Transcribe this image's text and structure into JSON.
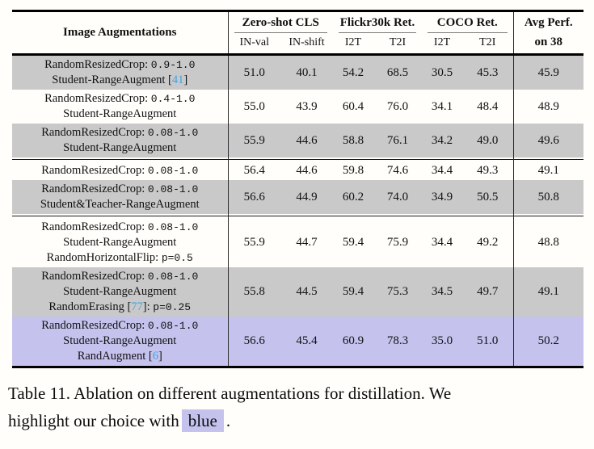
{
  "colors": {
    "row_gray": "#c9c9c9",
    "row_highlight_blue": "#c5c3ee",
    "citation_link": "#42a2e0",
    "rule_black": "#000000"
  },
  "table": {
    "header": {
      "augmentations_label": "Image Augmentations",
      "groups": [
        {
          "label": "Zero-shot CLS",
          "underline": true,
          "divider_left": false,
          "subs": [
            {
              "label": "IN-val",
              "bold": false
            },
            {
              "label": "IN-shift",
              "bold": false
            }
          ]
        },
        {
          "label": "Flickr30k Ret.",
          "underline": true,
          "divider_left": false,
          "subs": [
            {
              "label": "I2T",
              "bold": false
            },
            {
              "label": "T2I",
              "bold": false
            }
          ]
        },
        {
          "label": "COCO Ret.",
          "underline": true,
          "divider_left": false,
          "subs": [
            {
              "label": "I2T",
              "bold": false
            },
            {
              "label": "T2I",
              "bold": false
            }
          ]
        },
        {
          "label": "Avg Perf.",
          "underline": false,
          "divider_left": true,
          "subs": [
            {
              "label": "on 38",
              "bold": true
            }
          ]
        }
      ]
    },
    "rows": [
      {
        "bg": "gray",
        "separator_after": false,
        "lines": [
          [
            {
              "t": "RandomResizedCrop: ",
              "s": "serif"
            },
            {
              "t": "0.9-1.0",
              "s": "mono"
            }
          ],
          [
            {
              "t": "Student-RangeAugment [",
              "s": "serif"
            },
            {
              "t": "41",
              "s": "cite"
            },
            {
              "t": "]",
              "s": "serif"
            }
          ]
        ],
        "values": [
          "51.0",
          "40.1",
          "54.2",
          "68.5",
          "30.5",
          "45.3",
          "45.9"
        ]
      },
      {
        "bg": "white",
        "separator_after": false,
        "lines": [
          [
            {
              "t": "RandomResizedCrop: ",
              "s": "serif"
            },
            {
              "t": "0.4-1.0",
              "s": "mono"
            }
          ],
          [
            {
              "t": "Student-RangeAugment",
              "s": "serif"
            }
          ]
        ],
        "values": [
          "55.0",
          "43.9",
          "60.4",
          "76.0",
          "34.1",
          "48.4",
          "48.9"
        ]
      },
      {
        "bg": "gray",
        "separator_after": true,
        "lines": [
          [
            {
              "t": "RandomResizedCrop: ",
              "s": "serif"
            },
            {
              "t": "0.08-1.0",
              "s": "mono"
            }
          ],
          [
            {
              "t": "Student-RangeAugment",
              "s": "serif"
            }
          ]
        ],
        "values": [
          "55.9",
          "44.6",
          "58.8",
          "76.1",
          "34.2",
          "49.0",
          "49.6"
        ]
      },
      {
        "bg": "white",
        "separator_after": false,
        "lines": [
          [
            {
              "t": "RandomResizedCrop: ",
              "s": "serif"
            },
            {
              "t": "0.08-1.0",
              "s": "mono"
            }
          ]
        ],
        "values": [
          "56.4",
          "44.6",
          "59.8",
          "74.6",
          "34.4",
          "49.3",
          "49.1"
        ]
      },
      {
        "bg": "gray",
        "separator_after": true,
        "lines": [
          [
            {
              "t": "RandomResizedCrop: ",
              "s": "serif"
            },
            {
              "t": "0.08-1.0",
              "s": "mono"
            }
          ],
          [
            {
              "t": "Student&Teacher-RangeAugment",
              "s": "serif"
            }
          ]
        ],
        "values": [
          "56.6",
          "44.9",
          "60.2",
          "74.0",
          "34.9",
          "50.5",
          "50.8"
        ]
      },
      {
        "bg": "white",
        "separator_after": false,
        "lines": [
          [
            {
              "t": "RandomResizedCrop: ",
              "s": "serif"
            },
            {
              "t": "0.08-1.0",
              "s": "mono"
            }
          ],
          [
            {
              "t": "Student-RangeAugment",
              "s": "serif"
            }
          ],
          [
            {
              "t": "RandomHorizontalFlip: ",
              "s": "serif"
            },
            {
              "t": "p=0.5",
              "s": "mono"
            }
          ]
        ],
        "values": [
          "55.9",
          "44.7",
          "59.4",
          "75.9",
          "34.4",
          "49.2",
          "48.8"
        ]
      },
      {
        "bg": "gray",
        "separator_after": false,
        "lines": [
          [
            {
              "t": "RandomResizedCrop: ",
              "s": "serif"
            },
            {
              "t": "0.08-1.0",
              "s": "mono"
            }
          ],
          [
            {
              "t": "Student-RangeAugment",
              "s": "serif"
            }
          ],
          [
            {
              "t": "RandomErasing [",
              "s": "serif"
            },
            {
              "t": "77",
              "s": "cite"
            },
            {
              "t": "]: ",
              "s": "serif"
            },
            {
              "t": "p=0.25",
              "s": "mono"
            }
          ]
        ],
        "values": [
          "55.8",
          "44.5",
          "59.4",
          "75.3",
          "34.5",
          "49.7",
          "49.1"
        ]
      },
      {
        "bg": "blue",
        "separator_after": false,
        "lines": [
          [
            {
              "t": "RandomResizedCrop: ",
              "s": "serif"
            },
            {
              "t": "0.08-1.0",
              "s": "mono"
            }
          ],
          [
            {
              "t": "Student-RangeAugment",
              "s": "serif"
            }
          ],
          [
            {
              "t": "RandAugment [",
              "s": "serif"
            },
            {
              "t": "6",
              "s": "cite"
            },
            {
              "t": "]",
              "s": "serif"
            }
          ]
        ],
        "values": [
          "56.6",
          "45.4",
          "60.9",
          "78.3",
          "35.0",
          "51.0",
          "50.2"
        ]
      }
    ]
  },
  "caption": {
    "line1": "Table 11. Ablation on different augmentations for distillation. We",
    "line2_before": "highlight our choice with",
    "highlight_word": "blue",
    "line2_after": "."
  }
}
